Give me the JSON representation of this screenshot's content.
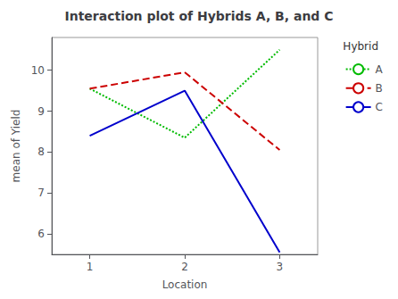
{
  "chart_data": {
    "type": "line",
    "title": "Interaction plot of Hybrids A, B, and C",
    "xlabel": "Location",
    "ylabel": "mean of Yield",
    "legend_title": "Hybrid",
    "x": [
      1,
      2,
      3
    ],
    "series": [
      {
        "name": "A",
        "color": "#00BB00",
        "line_style": "dotted",
        "values": [
          9.55,
          8.35,
          10.5
        ]
      },
      {
        "name": "B",
        "color": "#CC0000",
        "line_style": "dashed",
        "values": [
          9.55,
          9.95,
          8.05
        ]
      },
      {
        "name": "C",
        "color": "#0000CC",
        "line_style": "solid",
        "values": [
          8.4,
          9.5,
          5.55
        ]
      }
    ],
    "xlim": [
      0.6,
      3.4
    ],
    "ylim": [
      5.5,
      10.8
    ],
    "xticks": [
      1,
      2,
      3
    ],
    "yticks": [
      6,
      7,
      8,
      9,
      10
    ],
    "grid": false,
    "legend": "upper right"
  }
}
